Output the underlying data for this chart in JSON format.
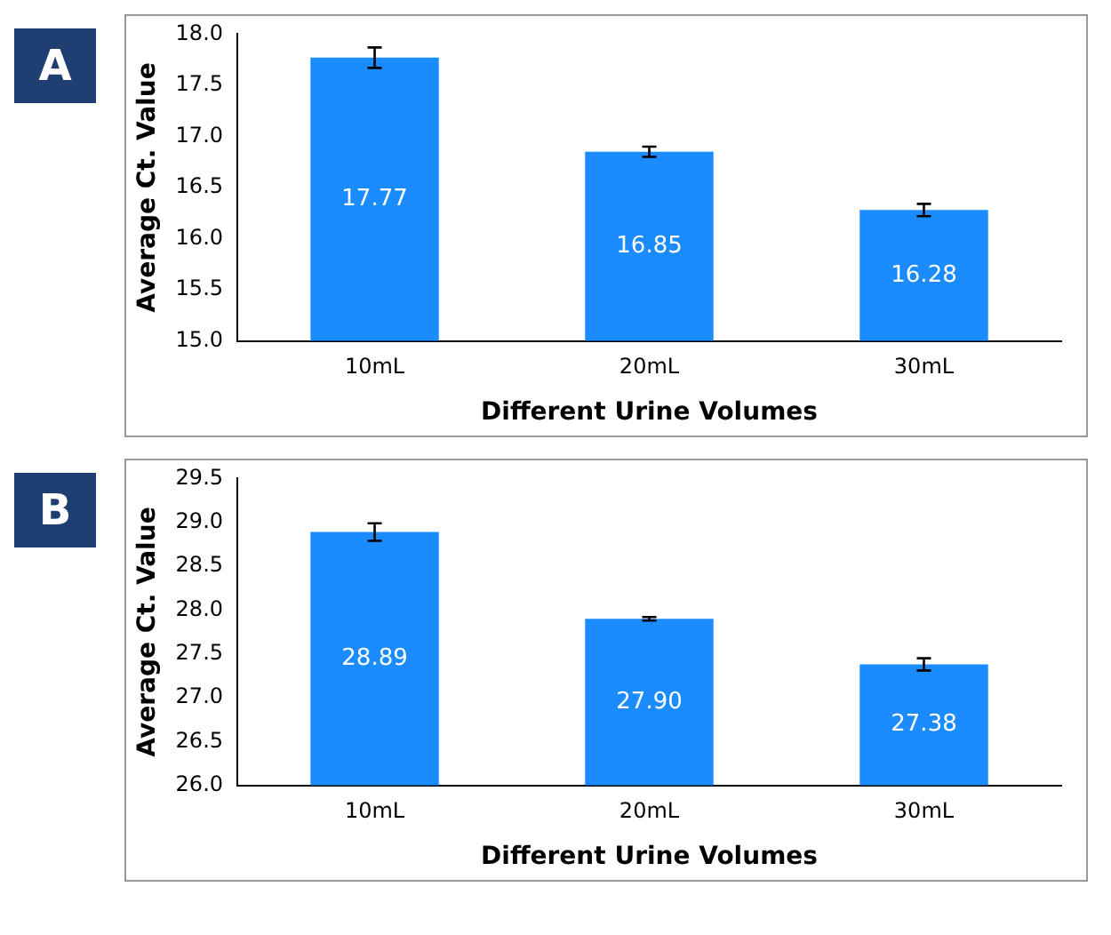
{
  "chart_data": [
    {
      "type": "bar",
      "annotations": [
        "A"
      ],
      "categories": [
        "10mL",
        "20mL",
        "30mL"
      ],
      "values": [
        17.77,
        16.85,
        16.28
      ],
      "value_labels": [
        "17.77",
        "16.85",
        "16.28"
      ],
      "errors": [
        0.1,
        0.05,
        0.06
      ],
      "color": "#1a8cff",
      "xlabel": "Different Urine Volumes",
      "ylabel": "Average Ct. Value",
      "ylim": [
        15,
        18
      ],
      "yticks": [
        {
          "value": 15,
          "label": "15.0"
        },
        {
          "value": 15.5,
          "label": "15.5"
        },
        {
          "value": 16,
          "label": "16.0"
        },
        {
          "value": 16.5,
          "label": "16.5"
        },
        {
          "value": 17,
          "label": "17.0"
        },
        {
          "value": 17.5,
          "label": "17.5"
        },
        {
          "value": 18,
          "label": "18.0"
        }
      ]
    },
    {
      "type": "bar",
      "annotations": [
        "B"
      ],
      "categories": [
        "10mL",
        "20mL",
        "30mL"
      ],
      "values": [
        28.89,
        27.9,
        27.38
      ],
      "value_labels": [
        "28.89",
        "27.90",
        "27.38"
      ],
      "errors": [
        0.1,
        0.02,
        0.07
      ],
      "color": "#1a8cff",
      "xlabel": "Different Urine Volumes",
      "ylabel": "Average Ct. Value",
      "ylim": [
        26,
        29.5
      ],
      "yticks": [
        {
          "value": 26,
          "label": "26.0"
        },
        {
          "value": 26.5,
          "label": "26.5"
        },
        {
          "value": 27,
          "label": "27.0"
        },
        {
          "value": 27.5,
          "label": "27.5"
        },
        {
          "value": 28,
          "label": "28.0"
        },
        {
          "value": 28.5,
          "label": "28.5"
        },
        {
          "value": 29,
          "label": "29.0"
        },
        {
          "value": 29.5,
          "label": "29.5"
        }
      ]
    }
  ]
}
